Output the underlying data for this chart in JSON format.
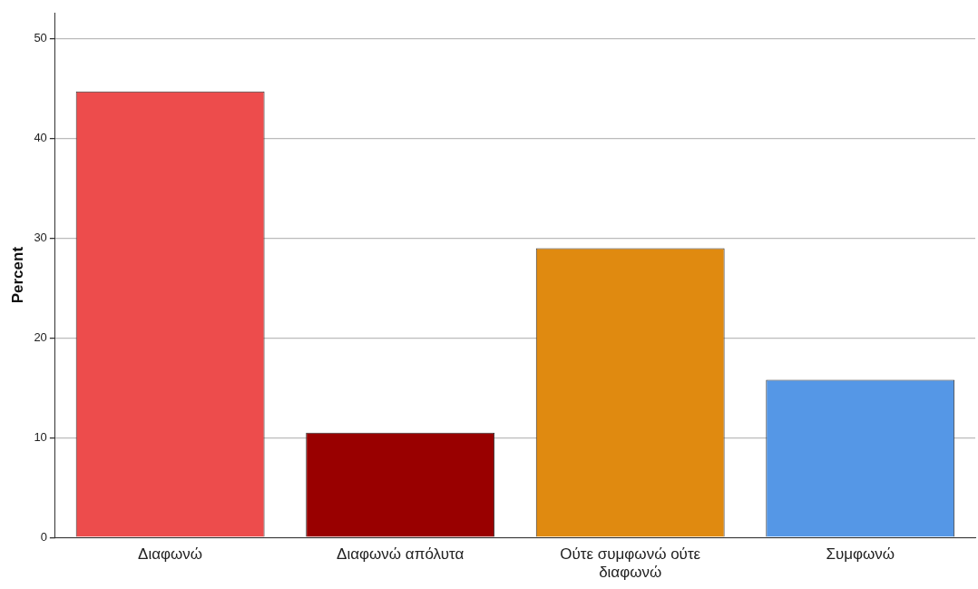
{
  "chart_data": {
    "type": "bar",
    "ylabel": "Percent",
    "categories": [
      "Διαφωνώ",
      "Διαφωνώ απόλυτα",
      "Ούτε συμφωνώ ούτε διαφωνώ",
      "Συμφωνώ"
    ],
    "values": [
      44.7,
      10.5,
      29.0,
      15.8
    ],
    "colors": [
      "#ed4c4c",
      "#990000",
      "#e08a10",
      "#5597e6"
    ],
    "ylim": [
      0,
      52.6
    ],
    "yticks": [
      0,
      10,
      20,
      30,
      40,
      50
    ],
    "grid": "y"
  }
}
